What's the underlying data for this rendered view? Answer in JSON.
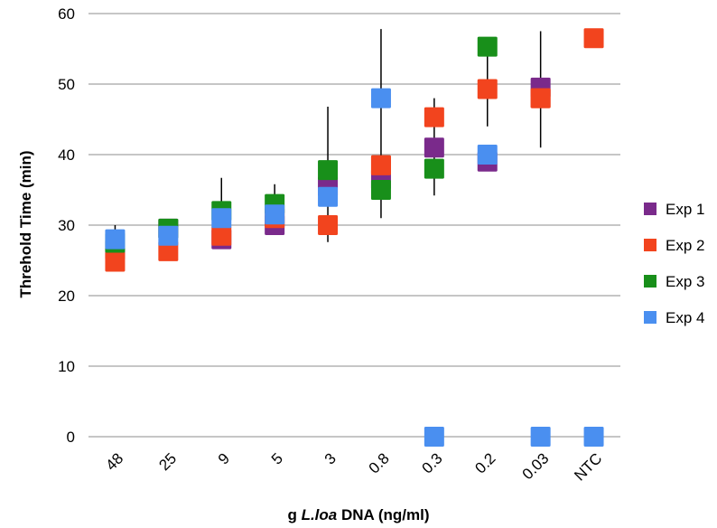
{
  "chart_data": {
    "type": "scatter",
    "title": "",
    "xlabel": {
      "prefix": "g ",
      "italic": "L.loa",
      "suffix": " DNA (ng/ml)"
    },
    "ylabel": "Threhold Time (min)",
    "ylim": [
      0,
      60
    ],
    "yticks": [
      0,
      10,
      20,
      30,
      40,
      50,
      60
    ],
    "grid": true,
    "legend_position": "right",
    "categories": [
      "48",
      "25",
      "9",
      "5",
      "3",
      "0.8",
      "0.3",
      "0.2",
      "0.03",
      "NTC"
    ],
    "error_bars": [
      {
        "category": "48",
        "low": 26.5,
        "high": 30.0
      },
      {
        "category": "9",
        "low": 26.8,
        "high": 36.7
      },
      {
        "category": "5",
        "low": 30.0,
        "high": 35.8
      },
      {
        "category": "3",
        "low": 27.6,
        "high": 46.8
      },
      {
        "category": "0.8",
        "low": 31.0,
        "high": 57.8
      },
      {
        "category": "0.3",
        "low": 34.2,
        "high": 48.0
      },
      {
        "category": "0.2",
        "low": 44.0,
        "high": 55.5
      },
      {
        "category": "0.03",
        "low": 41.0,
        "high": 57.5
      }
    ],
    "series": [
      {
        "name": "Exp 1",
        "color": "#7a2a8b",
        "values": [
          26.5,
          29.5,
          28.0,
          30.0,
          35.5,
          36.5,
          41.0,
          39.0,
          49.5,
          null
        ]
      },
      {
        "name": "Exp 2",
        "color": "#f2441e",
        "values": [
          24.8,
          26.3,
          28.5,
          31.0,
          30.0,
          38.5,
          45.3,
          49.3,
          48.0,
          56.5
        ]
      },
      {
        "name": "Exp 3",
        "color": "#188f1a",
        "values": [
          27.5,
          29.5,
          32.0,
          33.0,
          37.8,
          35.0,
          38.0,
          55.3,
          null,
          null
        ]
      },
      {
        "name": "Exp 4",
        "color": "#4a8ff0",
        "values": [
          28.0,
          28.5,
          31.0,
          31.5,
          34.0,
          48.0,
          0,
          40.0,
          0,
          0
        ]
      }
    ],
    "draw_order": [
      0,
      1,
      2,
      3
    ],
    "last_layer_overrides": [
      {
        "category": "0.8",
        "series": 1
      },
      {
        "category": "0.03",
        "series": 1
      }
    ]
  }
}
